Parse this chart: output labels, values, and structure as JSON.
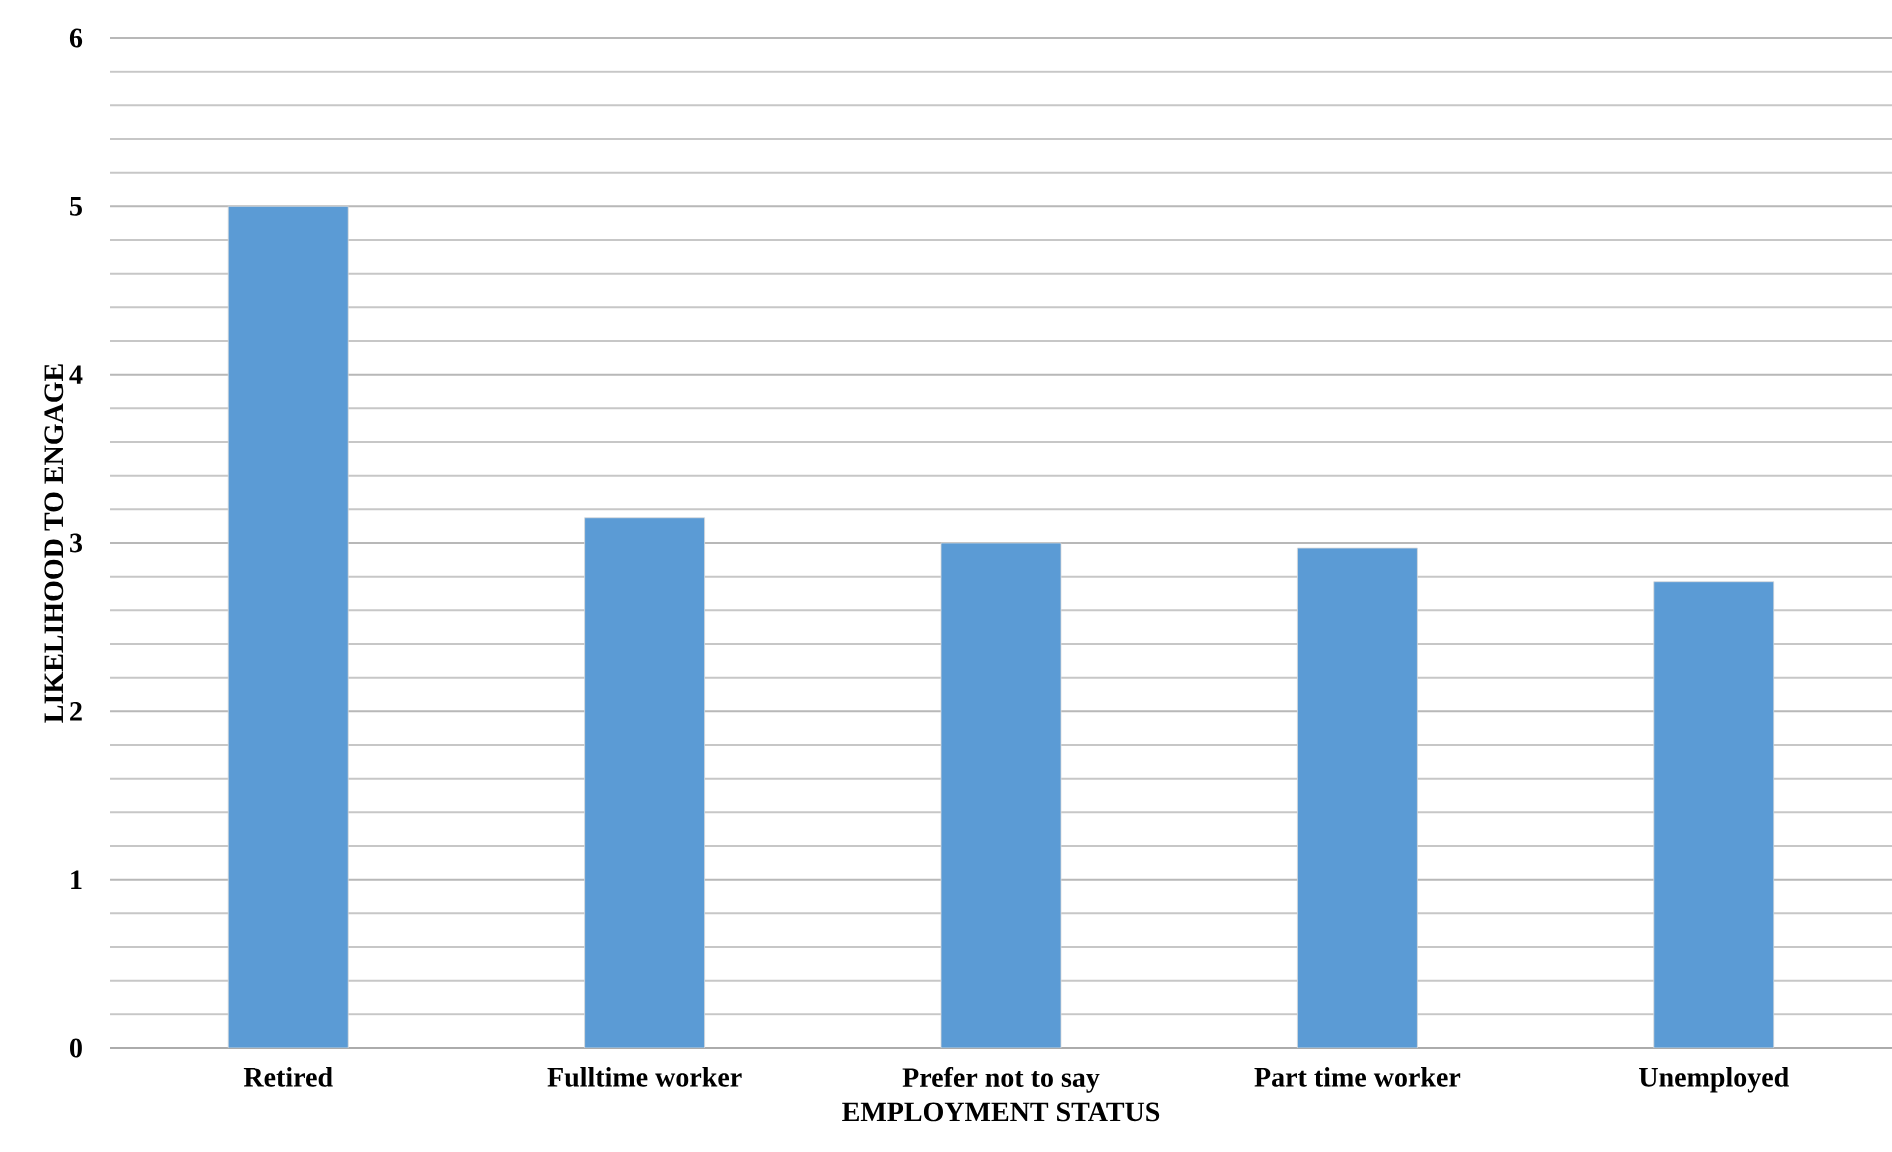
{
  "chart_data": {
    "type": "bar",
    "xlabel": "EMPLOYMENT STATUS",
    "ylabel": "LIKELIHOOD TO ENGAGE",
    "categories": [
      "Retired",
      "Fulltime worker",
      "Prefer not to say",
      "Part time worker",
      "Unemployed"
    ],
    "values": [
      5.0,
      3.15,
      3.0,
      2.97,
      2.77
    ],
    "color": "#5b9bd5",
    "ylim": [
      0,
      6
    ],
    "yticks": [
      0,
      1,
      2,
      3,
      4,
      5,
      6
    ],
    "grid": "y"
  }
}
